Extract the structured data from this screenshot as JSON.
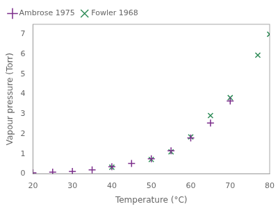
{
  "chart_data": {
    "type": "scatter",
    "xlabel": "Temperature (°C)",
    "ylabel": "Vapour pressure (Torr)",
    "series": [
      {
        "name": "Ambrose 1975",
        "color": "#7B2D8B",
        "marker": "plus",
        "x": [
          20,
          25,
          30,
          35,
          40,
          45,
          50,
          55,
          60,
          65,
          70
        ],
        "values": [
          0.05,
          0.08,
          0.12,
          0.2,
          0.35,
          0.52,
          0.75,
          1.15,
          1.8,
          2.55,
          3.65
        ]
      },
      {
        "name": "Fowler 1968",
        "color": "#2E8B57",
        "marker": "x",
        "x": [
          40,
          50,
          55,
          60,
          65,
          70,
          77,
          80
        ],
        "values": [
          0.33,
          0.72,
          1.1,
          1.85,
          2.92,
          3.82,
          5.95,
          7.0
        ]
      }
    ],
    "xlim": [
      20,
      80
    ],
    "ylim": [
      0,
      7.5
    ],
    "xticks": [
      20,
      30,
      40,
      50,
      60,
      70,
      80
    ],
    "yticks": [
      0,
      1,
      2,
      3,
      4,
      5,
      6,
      7
    ],
    "grid": false,
    "legend": "upper left"
  }
}
